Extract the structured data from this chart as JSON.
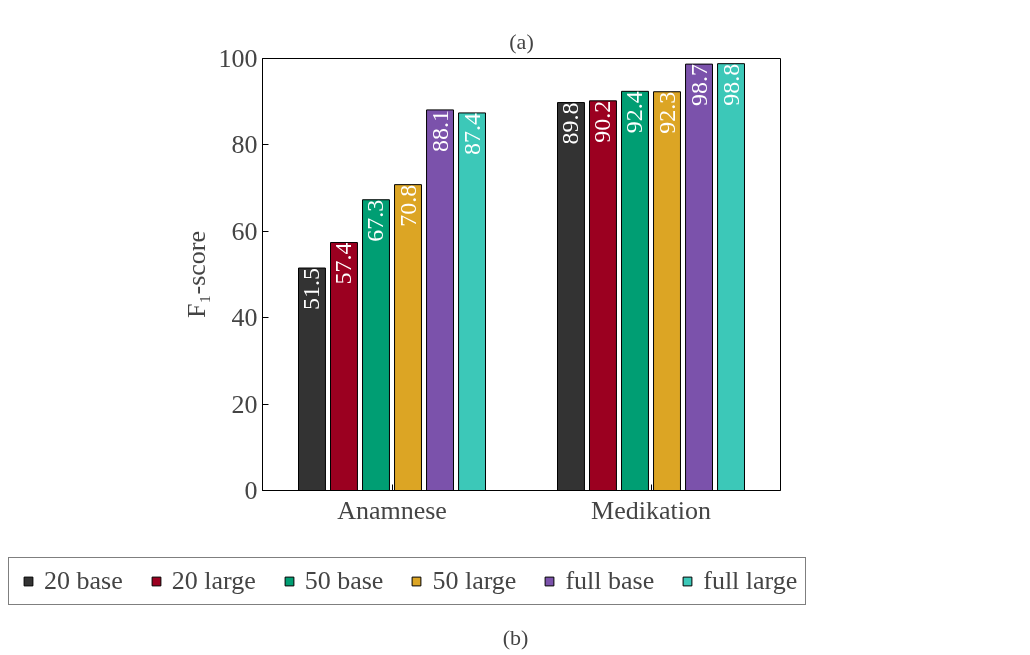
{
  "chart_data": {
    "type": "bar",
    "title": "(a)",
    "ylabel": "F₁-score",
    "categories": [
      "Anamnese",
      "Medikation"
    ],
    "series": [
      {
        "name": "20 base",
        "color": "#333333",
        "values": [
          51.5,
          89.8
        ]
      },
      {
        "name": "20 large",
        "color": "#9b0020",
        "values": [
          57.4,
          90.2
        ]
      },
      {
        "name": "50 base",
        "color": "#009e73",
        "values": [
          67.3,
          92.4
        ]
      },
      {
        "name": "50 large",
        "color": "#dca524",
        "values": [
          70.8,
          92.3
        ]
      },
      {
        "name": "full base",
        "color": "#7b52ab",
        "values": [
          88.1,
          98.7
        ]
      },
      {
        "name": "full large",
        "color": "#3cc8b8",
        "values": [
          87.4,
          98.8
        ]
      }
    ],
    "ylim": [
      0,
      100
    ],
    "yticks": [
      0,
      20,
      40,
      60,
      80,
      100
    ],
    "data_labels": true,
    "legend": "bottom",
    "grid": false,
    "annotations": [
      "(b)"
    ]
  }
}
